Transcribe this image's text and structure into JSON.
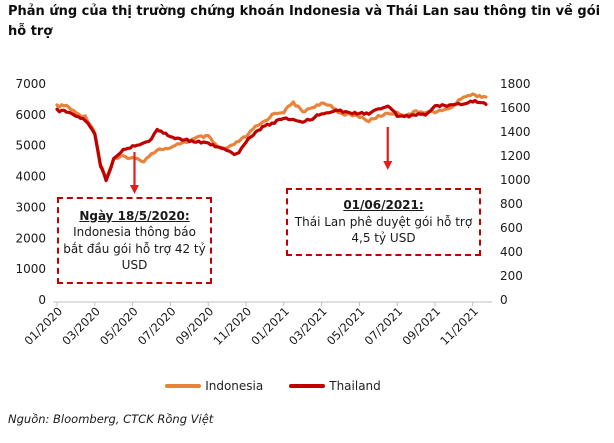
{
  "header": {
    "title": "Phản ứng của thị trường chứng khoán Indonesia và Thái Lan sau thông tin về gói hỗ trợ"
  },
  "footer": {
    "source": "Nguồn: Bloomberg, CTCK Rồng Việt"
  },
  "chart_data": {
    "type": "line",
    "title": "Phản ứng của thị trường chứng khoán Indonesia và Thái Lan sau thông tin về gói hỗ trợ",
    "x_tick_labels": [
      "01/2020",
      "03/2020",
      "05/2020",
      "07/2020",
      "09/2020",
      "11/2020",
      "01/2021",
      "03/2021",
      "05/2021",
      "07/2021",
      "09/2021",
      "11/2021"
    ],
    "left_axis": {
      "min": 0,
      "max": 7000,
      "ticks": [
        0,
        1000,
        2000,
        3000,
        4000,
        5000,
        6000,
        7000
      ]
    },
    "right_axis": {
      "min": 0,
      "max": 1800,
      "ticks": [
        0,
        200,
        400,
        600,
        800,
        1000,
        1200,
        1400,
        1600,
        1800
      ]
    },
    "grid": false,
    "legend_position": "bottom",
    "axis_color": "#BFBFBF",
    "arrow_color": "#E01E1E",
    "x_months": [
      0,
      0.5,
      1,
      1.5,
      2,
      2.3,
      2.6,
      3,
      3.5,
      4,
      4.6,
      5,
      5.3,
      5.5,
      6,
      6.5,
      7,
      7.5,
      8,
      8.5,
      9,
      9.5,
      10,
      10.5,
      11,
      11.5,
      12,
      12.5,
      13,
      13.5,
      14,
      14.5,
      15,
      15.5,
      16,
      16.5,
      17,
      17.5,
      18,
      18.5,
      19,
      19.5,
      20,
      20.5,
      21,
      21.5,
      22,
      22.7
    ],
    "series": [
      {
        "name": "Indonesia",
        "axis": "left",
        "color": "#E8833C",
        "values": [
          6280,
          6300,
          6060,
          5940,
          5450,
          4400,
          3940,
          4550,
          4650,
          4600,
          4510,
          4750,
          4850,
          4900,
          4900,
          5080,
          5150,
          5280,
          5300,
          4950,
          4900,
          5100,
          5300,
          5600,
          5800,
          6050,
          6100,
          6400,
          6100,
          6250,
          6350,
          6300,
          6050,
          6000,
          5950,
          5800,
          5950,
          6050,
          6050,
          6000,
          6100,
          6100,
          6100,
          6150,
          6300,
          6600,
          6650,
          6580
        ]
      },
      {
        "name": "Thailand",
        "axis": "right",
        "color": "#C00000",
        "values": [
          1580,
          1570,
          1530,
          1500,
          1380,
          1120,
          1000,
          1170,
          1250,
          1280,
          1310,
          1340,
          1430,
          1400,
          1360,
          1340,
          1330,
          1320,
          1300,
          1280,
          1250,
          1210,
          1320,
          1400,
          1450,
          1480,
          1520,
          1500,
          1490,
          1510,
          1560,
          1570,
          1580,
          1550,
          1560,
          1550,
          1590,
          1620,
          1540,
          1530,
          1540,
          1550,
          1610,
          1620,
          1630,
          1640,
          1660,
          1630
        ]
      }
    ],
    "annotations": [
      {
        "heading": "Ngày 18/5/2020:",
        "body": "Indonesia thông báo bắt đầu gói hỗ trợ 42 tỷ USD",
        "arrow_month": 4.1
      },
      {
        "heading": "01/06/2021:",
        "body": "Thái Lan phê duyệt gói hỗ trợ 4,5 tỷ USD",
        "arrow_month": 17.5
      }
    ]
  }
}
